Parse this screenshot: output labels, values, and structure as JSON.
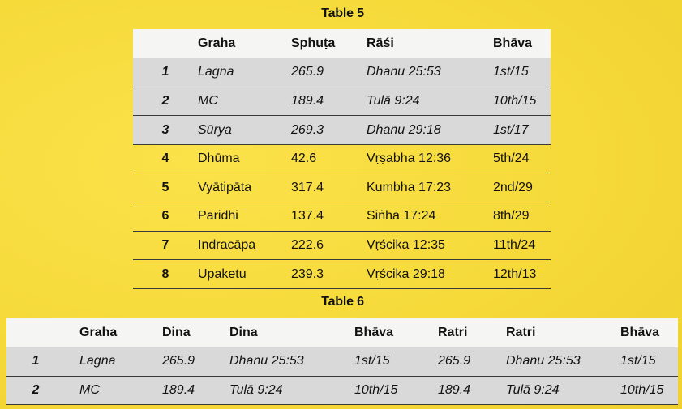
{
  "table5": {
    "title": "Table 5",
    "headers": [
      "",
      "Graha",
      "Sphuṭa",
      "Rāśi",
      "Bhāva"
    ],
    "rows": [
      {
        "n": "1",
        "graha": "Lagna",
        "sphuta": "265.9",
        "rasi": "Dhanu 25:53",
        "bhava": "1st/15"
      },
      {
        "n": "2",
        "graha": "MC",
        "sphuta": "189.4",
        "rasi": "Tulā 9:24",
        "bhava": "10th/15"
      },
      {
        "n": "3",
        "graha": "Sūrya",
        "sphuta": "269.3",
        "rasi": "Dhanu 29:18",
        "bhava": "1st/17"
      },
      {
        "n": "4",
        "graha": "Dhūma",
        "sphuta": "42.6",
        "rasi": "Vṛṣabha 12:36",
        "bhava": "5th/24"
      },
      {
        "n": "5",
        "graha": "Vyātipāta",
        "sphuta": "317.4",
        "rasi": "Kumbha 17:23",
        "bhava": "2nd/29"
      },
      {
        "n": "6",
        "graha": "Paridhi",
        "sphuta": "137.4",
        "rasi": "Siṅha 17:24",
        "bhava": "8th/29"
      },
      {
        "n": "7",
        "graha": "Indracāpa",
        "sphuta": "222.6",
        "rasi": "Vṛścika 12:35",
        "bhava": "11th/24"
      },
      {
        "n": "8",
        "graha": "Upaketu",
        "sphuta": "239.3",
        "rasi": "Vṛścika 29:18",
        "bhava": "12th/13"
      }
    ]
  },
  "table6": {
    "title": "Table 6",
    "headers": [
      "",
      "Graha",
      "Dina",
      "Dina",
      "Bhāva",
      "Ratri",
      "Ratri",
      "Bhāva"
    ],
    "rows": [
      {
        "n": "1",
        "graha": "Lagna",
        "dina1": "265.9",
        "dina2": "Dhanu 25:53",
        "bhava1": "1st/15",
        "ratri1": "265.9",
        "ratri2": "Dhanu 25:53",
        "bhava2": "1st/15"
      },
      {
        "n": "2",
        "graha": "MC",
        "dina1": "189.4",
        "dina2": "Tulā 9:24",
        "bhava1": "10th/15",
        "ratri1": "189.4",
        "ratri2": "Tulā 9:24",
        "bhava2": "10th/15"
      }
    ]
  }
}
